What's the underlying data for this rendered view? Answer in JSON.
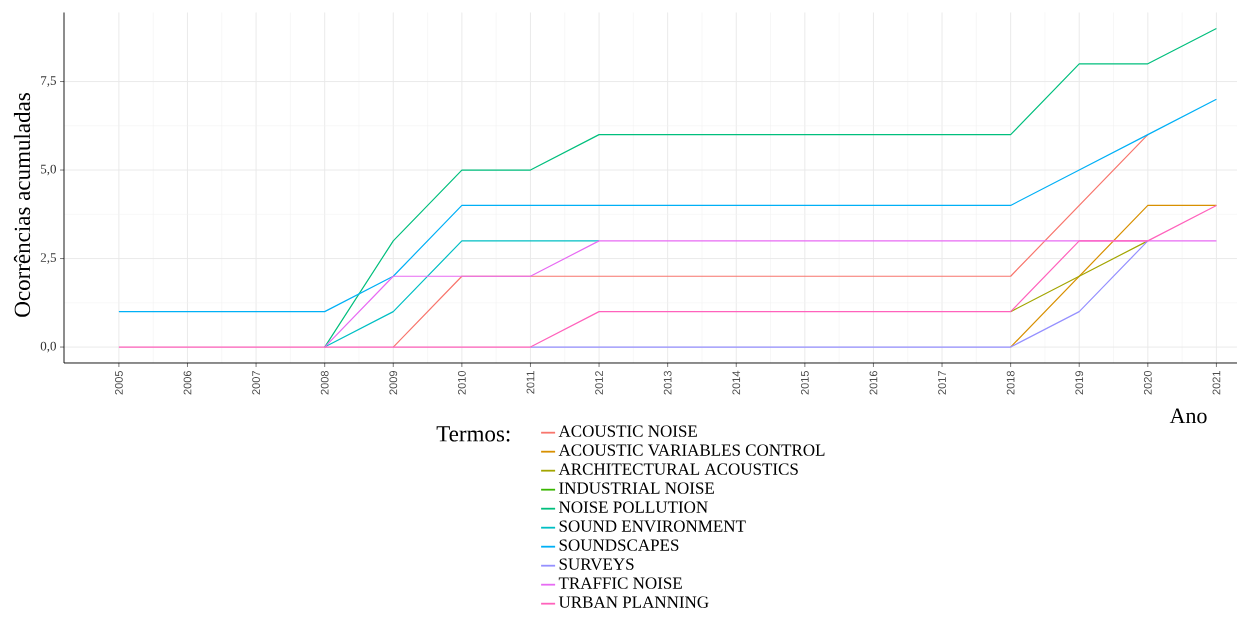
{
  "chart_data": {
    "type": "line",
    "ylabel": "Ocorrências acumuladas",
    "xlabel": "Ano",
    "legend_title": "Termos:",
    "x": [
      2005,
      2006,
      2007,
      2008,
      2009,
      2010,
      2011,
      2012,
      2013,
      2014,
      2015,
      2016,
      2017,
      2018,
      2019,
      2020,
      2021
    ],
    "xlim": [
      2004.2,
      2021.3
    ],
    "xticks": [
      2005,
      2006,
      2007,
      2008,
      2009,
      2010,
      2011,
      2012,
      2013,
      2014,
      2015,
      2016,
      2017,
      2018,
      2019,
      2020,
      2021
    ],
    "ylim": [
      -0.45,
      9.45
    ],
    "yticks": [
      {
        "value": 0,
        "label": "0,0"
      },
      {
        "value": 2.5,
        "label": "2,5"
      },
      {
        "value": 5,
        "label": "5,0"
      },
      {
        "value": 7.5,
        "label": "7,5"
      }
    ],
    "grid": true,
    "legend": "bottom",
    "line_style": "solid",
    "series": [
      {
        "name": "ACOUSTIC NOISE",
        "color": "#F8766D",
        "values": [
          null,
          null,
          null,
          null,
          0,
          2,
          2,
          2,
          2,
          2,
          2,
          2,
          2,
          2,
          4,
          6,
          null
        ]
      },
      {
        "name": "ACOUSTIC VARIABLES CONTROL",
        "color": "#D89000",
        "values": [
          null,
          null,
          null,
          null,
          null,
          null,
          null,
          null,
          null,
          null,
          null,
          null,
          null,
          0,
          2,
          4,
          4
        ]
      },
      {
        "name": "ARCHITECTURAL ACOUSTICS",
        "color": "#A3A500",
        "values": [
          null,
          null,
          null,
          null,
          null,
          null,
          null,
          null,
          null,
          null,
          null,
          null,
          null,
          1,
          2,
          3,
          null
        ]
      },
      {
        "name": "INDUSTRIAL NOISE",
        "color": "#39B600",
        "values": [
          null,
          null,
          null,
          null,
          null,
          null,
          null,
          null,
          null,
          null,
          null,
          null,
          null,
          null,
          null,
          null,
          null
        ]
      },
      {
        "name": "NOISE POLLUTION",
        "color": "#00BF7D",
        "values": [
          null,
          null,
          null,
          0,
          3,
          5,
          5,
          6,
          6,
          6,
          6,
          6,
          6,
          6,
          8,
          8,
          9
        ]
      },
      {
        "name": "SOUND ENVIRONMENT",
        "color": "#00BFC4",
        "values": [
          null,
          null,
          null,
          0,
          1,
          3,
          3,
          3,
          null,
          null,
          null,
          null,
          null,
          null,
          null,
          null,
          null
        ]
      },
      {
        "name": "SOUNDSCAPES",
        "color": "#00B0F6",
        "values": [
          1,
          1,
          1,
          1,
          2,
          4,
          4,
          4,
          4,
          4,
          4,
          4,
          4,
          4,
          5,
          6,
          7
        ]
      },
      {
        "name": "SURVEYS",
        "color": "#9590FF",
        "values": [
          null,
          null,
          null,
          null,
          null,
          null,
          0,
          0,
          0,
          0,
          0,
          0,
          0,
          0,
          1,
          3,
          null
        ]
      },
      {
        "name": "TRAFFIC NOISE",
        "color": "#E76BF3",
        "values": [
          null,
          null,
          null,
          0,
          2,
          2,
          2,
          3,
          3,
          3,
          3,
          3,
          3,
          3,
          3,
          3,
          3
        ]
      },
      {
        "name": "URBAN PLANNING",
        "color": "#FF62BC",
        "values": [
          0,
          0,
          0,
          0,
          0,
          0,
          0,
          1,
          1,
          1,
          1,
          1,
          1,
          1,
          3,
          3,
          4
        ]
      }
    ]
  }
}
